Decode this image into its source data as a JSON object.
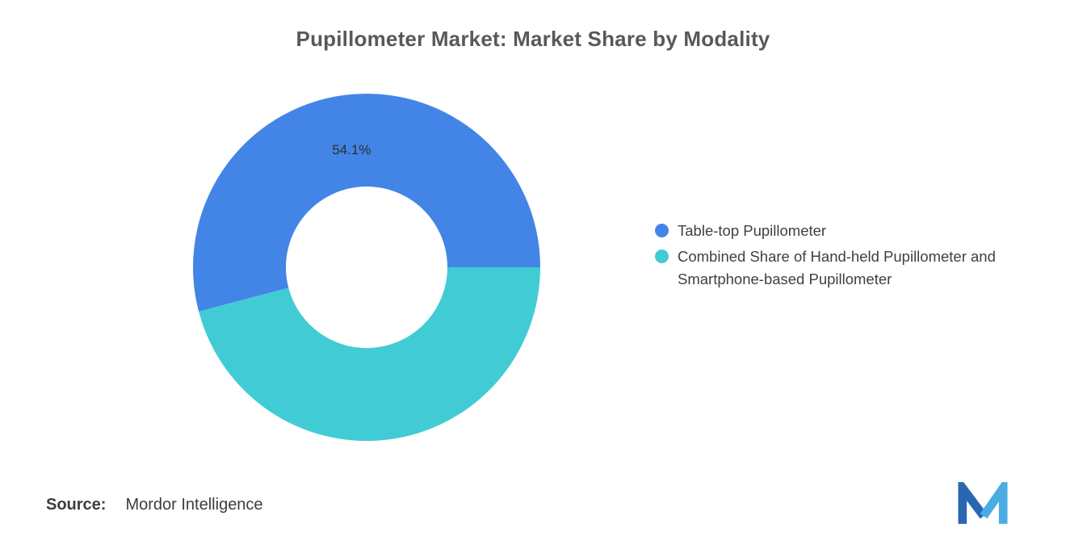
{
  "header": {
    "title": "Pupillometer Market: Market Share by Modality"
  },
  "chart_data": {
    "type": "pie",
    "subtype": "donut",
    "title": "Pupillometer Market: Market Share by Modality",
    "slices": [
      {
        "label": "Table-top Pupillometer",
        "value": 54.1,
        "data_label": "54.1%",
        "show_label": true,
        "color": "#4385E6"
      },
      {
        "label": "Combined Share of Hand-held Pupillometer and Smartphone-based Pupillometer",
        "value": 45.9,
        "data_label": "",
        "show_label": false,
        "color": "#41CCD5"
      }
    ],
    "start_angle_deg": 0,
    "direction": "counterclockwise",
    "outer_radius_px": 215,
    "inner_radius_px": 100,
    "legend_position": "right"
  },
  "footer": {
    "source_label": "Source:",
    "source_value": "Mordor Intelligence"
  },
  "logo": {
    "name": "Mordor Intelligence",
    "color_dark": "#2A66B1",
    "color_light": "#4AADE2"
  }
}
